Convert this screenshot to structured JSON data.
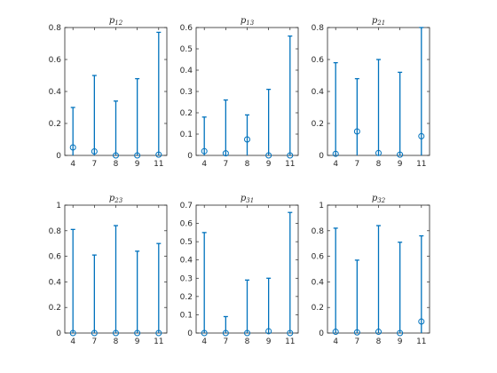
{
  "figure": {
    "accent_color": "#0072BD"
  },
  "chart_data": [
    {
      "type": "errorbar",
      "title": "p12",
      "categories": [
        "4",
        "7",
        "8",
        "9",
        "11"
      ],
      "ylim": [
        0,
        0.8
      ],
      "yticks": [
        "0",
        "0.2",
        "0.4",
        "0.6",
        "0.8"
      ],
      "values": [
        0.05,
        0.025,
        0.0,
        0.0,
        0.005
      ],
      "lower": [
        0.0,
        0.0,
        0.0,
        0.0,
        0.0
      ],
      "upper": [
        0.3,
        0.5,
        0.34,
        0.48,
        0.77
      ],
      "grid": false
    },
    {
      "type": "errorbar",
      "title": "p13",
      "categories": [
        "4",
        "7",
        "8",
        "9",
        "11"
      ],
      "ylim": [
        0,
        0.6
      ],
      "yticks": [
        "0",
        "0.1",
        "0.2",
        "0.3",
        "0.4",
        "0.5",
        "0.6"
      ],
      "values": [
        0.02,
        0.01,
        0.075,
        0.0,
        0.0
      ],
      "lower": [
        0.0,
        0.0,
        0.0,
        0.0,
        0.0
      ],
      "upper": [
        0.18,
        0.26,
        0.19,
        0.31,
        0.56
      ],
      "grid": false
    },
    {
      "type": "errorbar",
      "title": "p21",
      "categories": [
        "4",
        "7",
        "8",
        "9",
        "11"
      ],
      "ylim": [
        0,
        0.8
      ],
      "yticks": [
        "0",
        "0.2",
        "0.4",
        "0.6",
        "0.8"
      ],
      "values": [
        0.01,
        0.15,
        0.015,
        0.005,
        0.12
      ],
      "lower": [
        0.0,
        0.0,
        0.0,
        0.0,
        0.0
      ],
      "upper": [
        0.58,
        0.48,
        0.6,
        0.52,
        0.8
      ],
      "grid": false
    },
    {
      "type": "errorbar",
      "title": "p23",
      "categories": [
        "4",
        "7",
        "8",
        "9",
        "11"
      ],
      "ylim": [
        0,
        1
      ],
      "yticks": [
        "0",
        "0.2",
        "0.4",
        "0.6",
        "0.8",
        "1"
      ],
      "values": [
        0.0,
        0.0,
        0.0,
        0.0,
        0.0
      ],
      "lower": [
        0.0,
        0.0,
        0.0,
        0.0,
        0.0
      ],
      "upper": [
        0.81,
        0.61,
        0.84,
        0.64,
        0.7
      ],
      "grid": false
    },
    {
      "type": "errorbar",
      "title": "p31",
      "categories": [
        "4",
        "7",
        "8",
        "9",
        "11"
      ],
      "ylim": [
        0,
        0.7
      ],
      "yticks": [
        "0",
        "0.1",
        "0.2",
        "0.3",
        "0.4",
        "0.5",
        "0.6",
        "0.7"
      ],
      "values": [
        0.0,
        0.0,
        0.0,
        0.01,
        0.0
      ],
      "lower": [
        0.0,
        0.0,
        0.0,
        0.0,
        0.0
      ],
      "upper": [
        0.55,
        0.09,
        0.29,
        0.3,
        0.66
      ],
      "grid": false
    },
    {
      "type": "errorbar",
      "title": "p32",
      "categories": [
        "4",
        "7",
        "8",
        "9",
        "11"
      ],
      "ylim": [
        0,
        1
      ],
      "yticks": [
        "0",
        "0.2",
        "0.4",
        "0.6",
        "0.8",
        "1"
      ],
      "values": [
        0.01,
        0.005,
        0.01,
        0.0,
        0.09
      ],
      "lower": [
        0.0,
        0.0,
        0.0,
        0.0,
        0.0
      ],
      "upper": [
        0.82,
        0.57,
        0.84,
        0.71,
        0.76
      ],
      "grid": false
    }
  ]
}
